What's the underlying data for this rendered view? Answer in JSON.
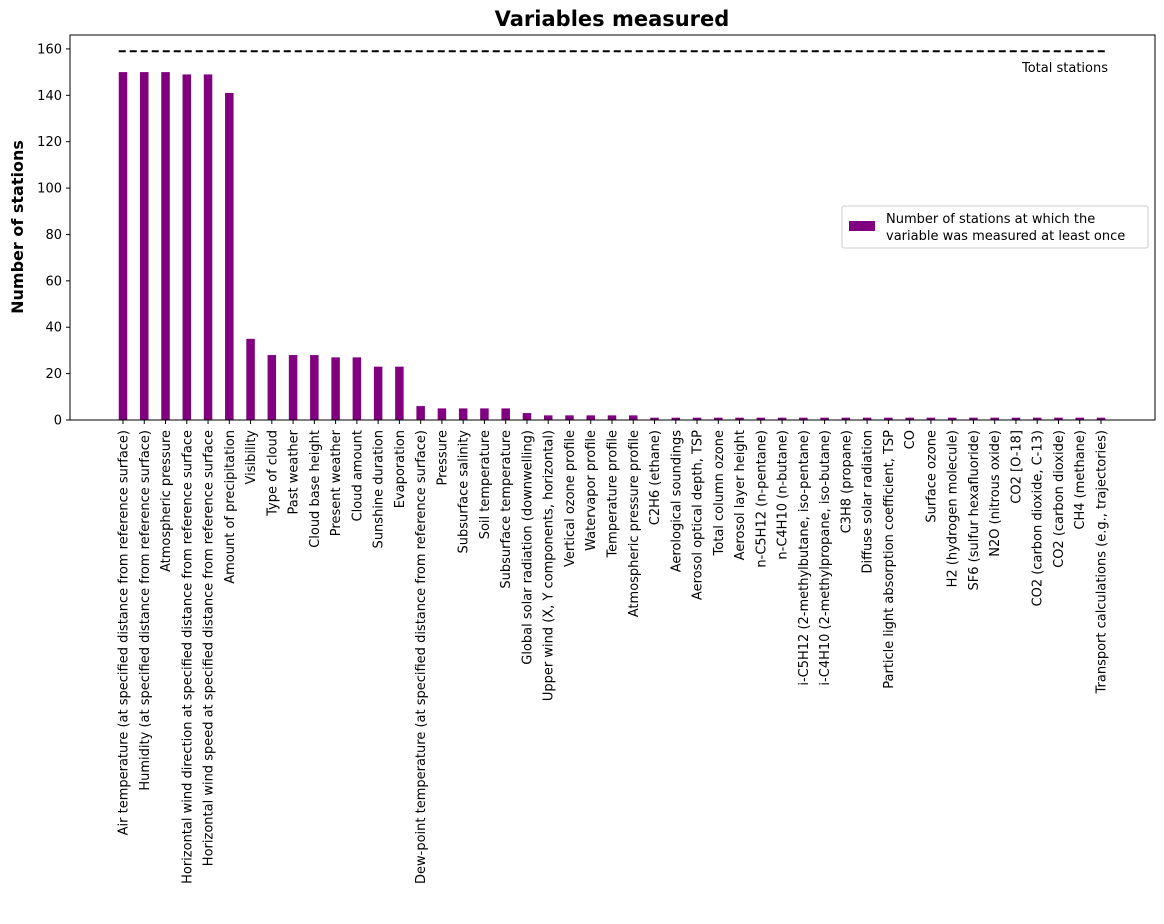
{
  "chart_data": {
    "type": "bar",
    "title": "Variables measured",
    "xlabel": "",
    "ylabel": "Number of stations",
    "ylim": [
      0,
      166
    ],
    "yticks": [
      0,
      20,
      40,
      60,
      80,
      100,
      120,
      140,
      160
    ],
    "grid": false,
    "legend_position": "center-right",
    "bar_color": "#800080",
    "categories": [
      "Air temperature (at specified distance from reference surface)",
      "Humidity (at specified distance from reference surface)",
      "Atmospheric pressure",
      "Horizontal wind direction at specified distance from reference surface",
      "Horizontal wind speed at specified distance from reference surface",
      "Amount of precipitation",
      "Visibility",
      "Type of cloud",
      "Past weather",
      "Cloud base height",
      "Present weather",
      "Cloud amount",
      "Sunshine duration",
      "Evaporation",
      "Dew-point temperature (at specified distance from reference surface)",
      "Pressure",
      "Subsurface salinity",
      "Soil temperature",
      "Subsurface temperature",
      "Global solar radiation (downwelling)",
      "Upper wind (X, Y components, horizontal)",
      "Vertical ozone profile",
      "Watervapor profile",
      "Temperature profile",
      "Atmospheric pressure profile",
      "C2H6 (ethane)",
      "Aerological soundings",
      "Aerosol optical depth, TSP",
      "Total column ozone",
      "Aerosol layer height",
      "n-C5H12 (n-pentane)",
      "n-C4H10 (n-butane)",
      "i-C5H12 (2-methylbutane, iso-pentane)",
      "i-C4H10 (2-methylpropane, iso-butane)",
      "C3H8 (propane)",
      "Diffuse solar radiation",
      "Particle light absorption coefficient, TSP",
      "CO",
      "Surface ozone",
      "H2 (hydrogen molecule)",
      "SF6 (sulfur hexafluoride)",
      "N2O (nitrous oxide)",
      "CO2 [O-18]",
      "CO2 (carbon dioxide, C-13)",
      "CO2 (carbon dioxide)",
      "CH4 (methane)",
      "Transport calculations (e.g., trajectories)"
    ],
    "series": [
      {
        "name": "Number of stations at which the variable was measured at least once",
        "values": [
          150,
          150,
          150,
          149,
          149,
          141,
          35,
          28,
          28,
          28,
          27,
          27,
          23,
          23,
          6,
          5,
          5,
          5,
          5,
          3,
          2,
          2,
          2,
          2,
          2,
          1,
          1,
          1,
          1,
          1,
          1,
          1,
          1,
          1,
          1,
          1,
          1,
          1,
          1,
          1,
          1,
          1,
          1,
          1,
          1,
          1,
          1
        ]
      }
    ],
    "reference_line": {
      "label": "Total stations",
      "value": 159,
      "style": "dashed",
      "color": "#000000"
    },
    "legend": {
      "lines": [
        "Number of stations at which the",
        "variable was measured at least once"
      ]
    }
  }
}
